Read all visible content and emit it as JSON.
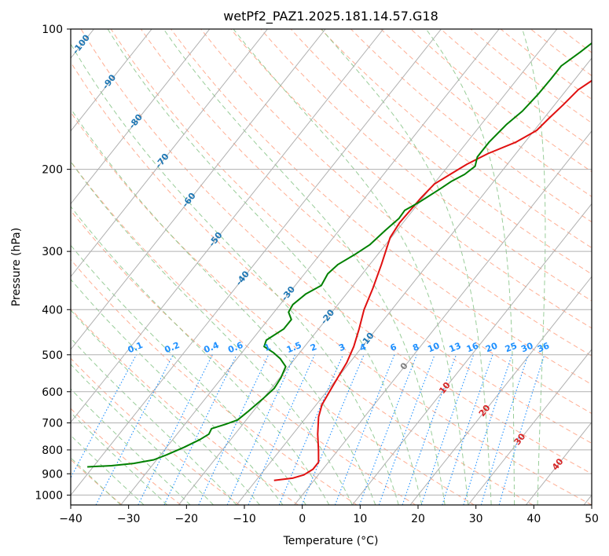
{
  "chart_data": {
    "type": "line",
    "title": "wetPf2_PAZ1.2025.181.14.57.G18",
    "xlabel": "Temperature (°C)",
    "ylabel": "Pressure (hPa)",
    "xlim": [
      -40,
      50
    ],
    "ylim": [
      1050,
      100
    ],
    "y_scale": "log",
    "grid": true,
    "x_ticks": [
      "−40",
      "−30",
      "−20",
      "−10",
      "0",
      "10",
      "20",
      "30",
      "40",
      "50"
    ],
    "y_ticks": [
      "100",
      "200",
      "300",
      "400",
      "500",
      "600",
      "700",
      "800",
      "900",
      "1000"
    ],
    "skew_deg_per_log_pressure": 64,
    "series": [
      {
        "color": "#e01010",
        "points": [
          [
            -6.9,
            930
          ],
          [
            -4.0,
            920
          ],
          [
            -2.5,
            905
          ],
          [
            -1.7,
            880
          ],
          [
            -1.7,
            850
          ],
          [
            -3.4,
            800
          ],
          [
            -5.7,
            740
          ],
          [
            -7.9,
            680
          ],
          [
            -9.0,
            640
          ],
          [
            -9.5,
            600
          ],
          [
            -10.0,
            560
          ],
          [
            -10.5,
            520
          ],
          [
            -11.5,
            480
          ],
          [
            -13.0,
            440
          ],
          [
            -14.8,
            400
          ],
          [
            -16.2,
            360
          ],
          [
            -18.0,
            320
          ],
          [
            -20.2,
            280
          ],
          [
            -20.6,
            260
          ],
          [
            -20.3,
            230
          ],
          [
            -19.9,
            215
          ],
          [
            -18.5,
            205
          ],
          [
            -17.0,
            195
          ],
          [
            -14.8,
            185
          ],
          [
            -11.6,
            175
          ],
          [
            -9.6,
            165
          ],
          [
            -9.1,
            155
          ],
          [
            -8.5,
            145
          ],
          [
            -8.0,
            135
          ],
          [
            -6.7,
            128
          ],
          [
            -6.1,
            115
          ],
          [
            -5.2,
            108
          ],
          [
            -4.6,
            100
          ]
        ]
      },
      {
        "color": "#008000",
        "points": [
          [
            -41.0,
            870
          ],
          [
            -37.0,
            865
          ],
          [
            -33.5,
            855
          ],
          [
            -30.5,
            840
          ],
          [
            -29.0,
            820
          ],
          [
            -27.0,
            790
          ],
          [
            -25.3,
            760
          ],
          [
            -24.5,
            740
          ],
          [
            -24.8,
            720
          ],
          [
            -23.0,
            705
          ],
          [
            -21.5,
            690
          ],
          [
            -20.8,
            660
          ],
          [
            -20.0,
            620
          ],
          [
            -19.5,
            590
          ],
          [
            -19.8,
            560
          ],
          [
            -20.5,
            530
          ],
          [
            -22.5,
            510
          ],
          [
            -24.5,
            495
          ],
          [
            -27.0,
            480
          ],
          [
            -27.5,
            465
          ],
          [
            -26.0,
            440
          ],
          [
            -26.0,
            420
          ],
          [
            -27.5,
            405
          ],
          [
            -27.8,
            390
          ],
          [
            -27.0,
            370
          ],
          [
            -25.5,
            355
          ],
          [
            -26.0,
            335
          ],
          [
            -25.5,
            320
          ],
          [
            -24.0,
            305
          ],
          [
            -22.7,
            290
          ],
          [
            -22.0,
            270
          ],
          [
            -21.3,
            255
          ],
          [
            -21.4,
            245
          ],
          [
            -20.0,
            235
          ],
          [
            -18.2,
            220
          ],
          [
            -17.3,
            212
          ],
          [
            -16.0,
            205
          ],
          [
            -15.3,
            197
          ],
          [
            -16.2,
            188
          ],
          [
            -16.2,
            175
          ],
          [
            -15.6,
            160
          ],
          [
            -14.7,
            150
          ],
          [
            -14.3,
            138
          ],
          [
            -14.2,
            128
          ],
          [
            -14.2,
            120
          ],
          [
            -12.8,
            112
          ],
          [
            -11.7,
            105
          ],
          [
            -10.0,
            100
          ]
        ]
      }
    ],
    "isotherm_labels": [
      {
        "text": "-100",
        "t": -100,
        "p": 108
      },
      {
        "text": "-90",
        "t": -90,
        "p": 130
      },
      {
        "text": "-80",
        "t": -80,
        "p": 158
      },
      {
        "text": "-70",
        "t": -70,
        "p": 192
      },
      {
        "text": "-60",
        "t": -60,
        "p": 233
      },
      {
        "text": "-50",
        "t": -50,
        "p": 283
      },
      {
        "text": "-40",
        "t": -40,
        "p": 343
      },
      {
        "text": "-30",
        "t": -30,
        "p": 370
      },
      {
        "text": "-20",
        "t": -20,
        "p": 415
      },
      {
        "text": "-10",
        "t": -10,
        "p": 465
      },
      {
        "text": "0",
        "t": 0,
        "p": 530
      },
      {
        "text": "10",
        "t": 10,
        "p": 590
      },
      {
        "text": "20",
        "t": 20,
        "p": 660
      },
      {
        "text": "30",
        "t": 30,
        "p": 760
      },
      {
        "text": "40",
        "t": 40,
        "p": 860
      }
    ],
    "mixing_ratios": [
      "0.1",
      "0.2",
      "0.4",
      "0.6",
      "1",
      "1.5",
      "2",
      "3",
      "4",
      "6",
      "8",
      "10",
      "13",
      "16",
      "20",
      "25",
      "30",
      "36"
    ],
    "colors": {
      "grid": "#b0b0b0",
      "dry_adiabat": "#ffa080",
      "moist_adiabat": "#80c080",
      "mixing_ratio": "#1e90ff",
      "isotherm_neg_label": "#1f77b4",
      "isotherm_zero_label": "#7f7f7f",
      "isotherm_pos_label": "#d62728",
      "temperature_trace": "#e01010",
      "dewpoint_trace": "#008000"
    }
  }
}
